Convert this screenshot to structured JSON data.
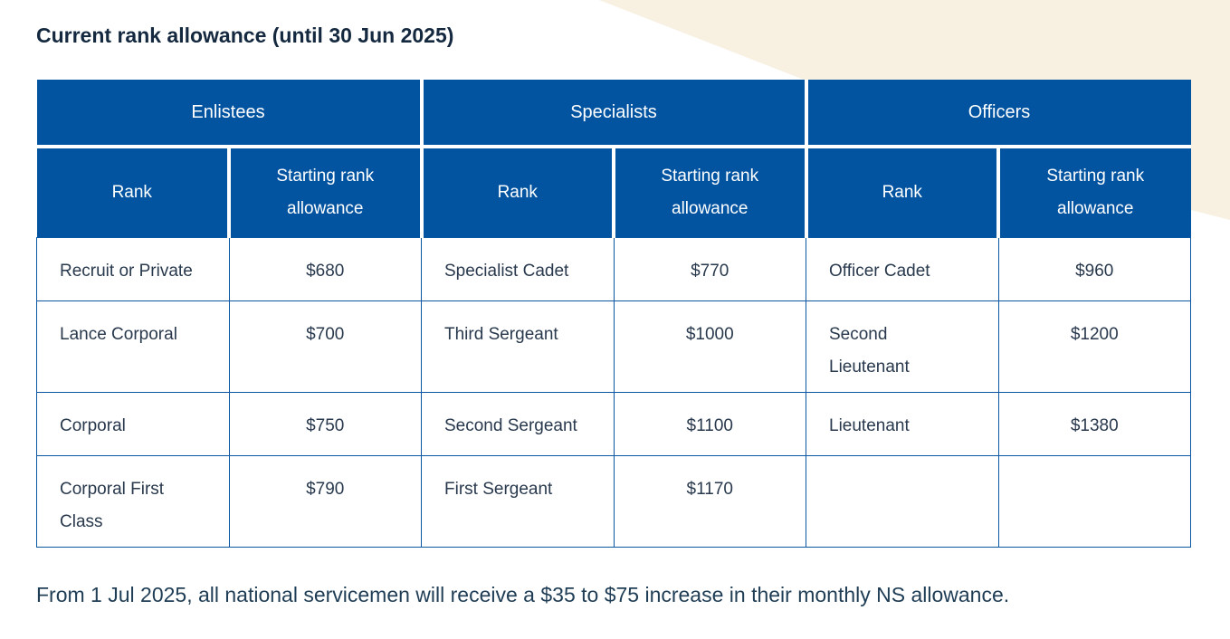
{
  "page": {
    "title": "Current rank allowance (until 30 Jun 2025)",
    "footer_note": "From 1 Jul 2025, all national servicemen will receive a $35 to $75 increase in their monthly NS allowance."
  },
  "table": {
    "groups": [
      {
        "label": "Enlistees",
        "columns": [
          "Rank",
          "Starting rank\nallowance"
        ]
      },
      {
        "label": "Specialists",
        "columns": [
          "Rank",
          "Starting rank\nallowance"
        ]
      },
      {
        "label": "Officers",
        "columns": [
          "Rank",
          "Starting rank\nallowance"
        ]
      }
    ],
    "rows": [
      [
        "Recruit or Private",
        "$680",
        "Specialist Cadet",
        "$770",
        "Officer Cadet",
        "$960"
      ],
      [
        "Lance Corporal",
        "$700",
        "Third Sergeant",
        "$1000",
        "Second\nLieutenant",
        "$1200"
      ],
      [
        "Corporal",
        "$750",
        "Second Sergeant",
        "$1100",
        "Lieutenant",
        "$1380"
      ],
      [
        "Corporal First\nClass",
        "$790",
        "First Sergeant",
        "$1170",
        "",
        ""
      ]
    ]
  },
  "colors": {
    "header-blue": "#0253A0",
    "border-blue": "#0A57A4",
    "beige": "#F8F1E2",
    "title-text": "#14293F",
    "cell-text": "#29394D",
    "footer-text": "#1F3D55",
    "header-text": "#FFFFFF"
  }
}
